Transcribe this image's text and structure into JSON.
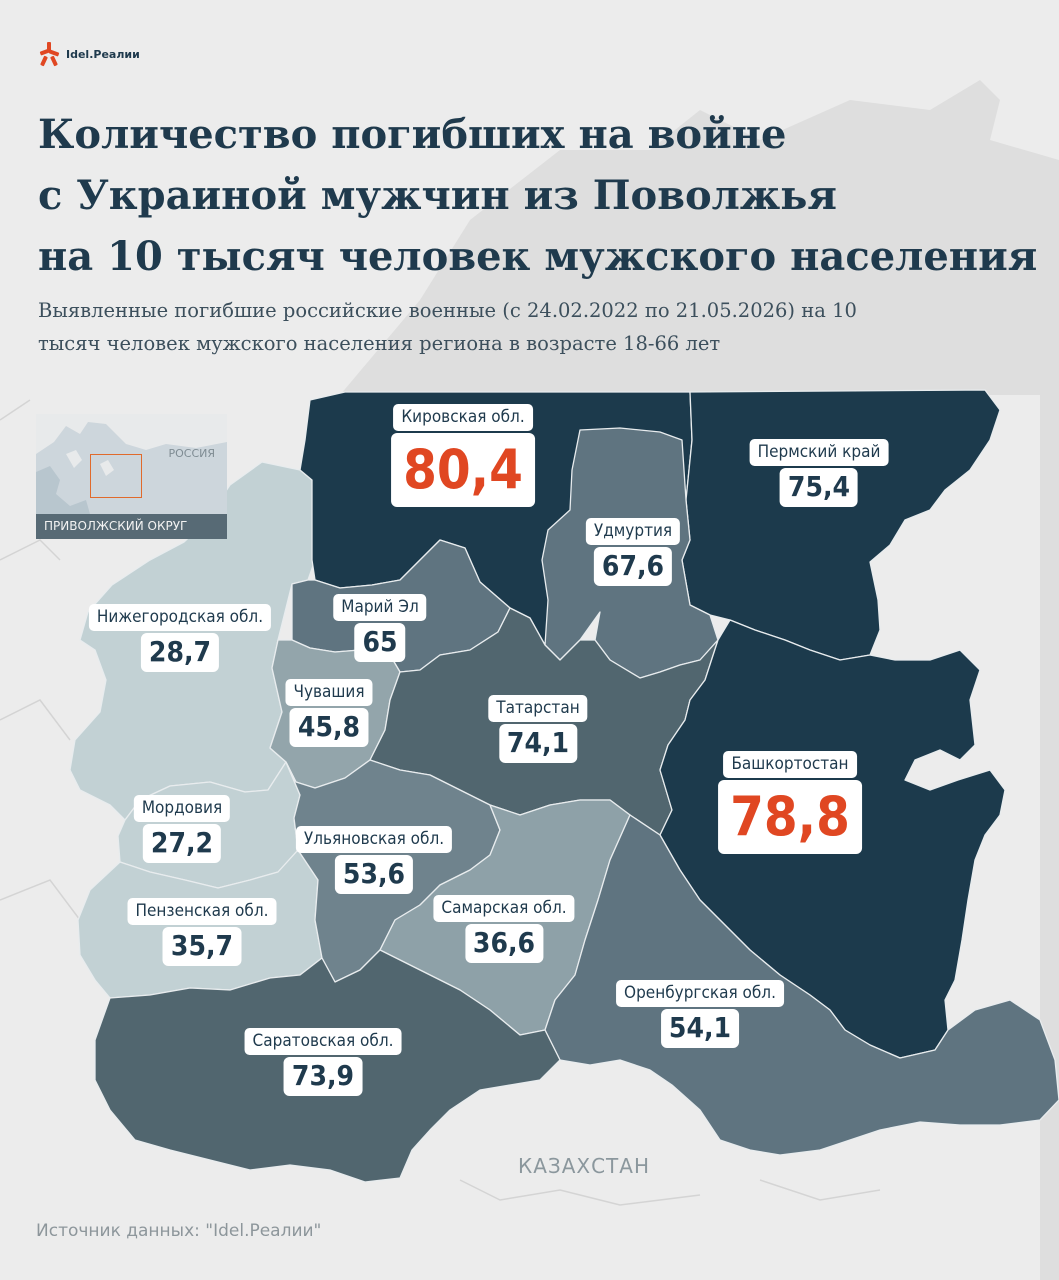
{
  "brand": {
    "name": "Idel.Реалии",
    "accent": "#e04722"
  },
  "title_lines": [
    "Количество погибших на войне",
    "с Украиной мужчин из Поволжья",
    "на 10 тысяч человек мужского населения"
  ],
  "subtitle_lines": [
    "Выявленные погибшие российские военные (с 24.02.2022 по 21.05.2026) на 10",
    "тысяч человек мужского населения региона в возрасте 18-66 лет"
  ],
  "inset": {
    "country_label": "РОССИЯ",
    "district_label": "ПРИВОЛЖСКИЙ ОКРУГ"
  },
  "regions": [
    {
      "name": "Кировская обл.",
      "value": "80,4",
      "highlight": true,
      "fill": "#1c3a4c"
    },
    {
      "name": "Пермский край",
      "value": "75,4",
      "highlight": false,
      "fill": "#1c3a4c"
    },
    {
      "name": "Удмуртия",
      "value": "67,6",
      "highlight": false,
      "fill": "#5f7480"
    },
    {
      "name": "Нижегородская обл.",
      "value": "28,7",
      "highlight": false,
      "fill": "#c2d1d4"
    },
    {
      "name": "Марий Эл",
      "value": "65",
      "highlight": false,
      "fill": "#5f7480"
    },
    {
      "name": "Чувашия",
      "value": "45,8",
      "highlight": false,
      "fill": "#93a5ab"
    },
    {
      "name": "Татарстан",
      "value": "74,1",
      "highlight": false,
      "fill": "#51666f"
    },
    {
      "name": "Башкортостан",
      "value": "78,8",
      "highlight": true,
      "fill": "#1c3a4c"
    },
    {
      "name": "Мордовия",
      "value": "27,2",
      "highlight": false,
      "fill": "#c2d1d4"
    },
    {
      "name": "Ульяновская обл.",
      "value": "53,6",
      "highlight": false,
      "fill": "#6f838d"
    },
    {
      "name": "Самарская обл.",
      "value": "36,6",
      "highlight": false,
      "fill": "#8ea1a8"
    },
    {
      "name": "Пензенская обл.",
      "value": "35,7",
      "highlight": false,
      "fill": "#c2d1d4"
    },
    {
      "name": "Оренбургская обл.",
      "value": "54,1",
      "highlight": false,
      "fill": "#5f7480"
    },
    {
      "name": "Саратовская обл.",
      "value": "73,9",
      "highlight": false,
      "fill": "#51666f"
    }
  ],
  "map_labels": {
    "neighbor": "КАЗАХСТАН"
  },
  "source": "Источник данных: \"Idel.Реалии\""
}
